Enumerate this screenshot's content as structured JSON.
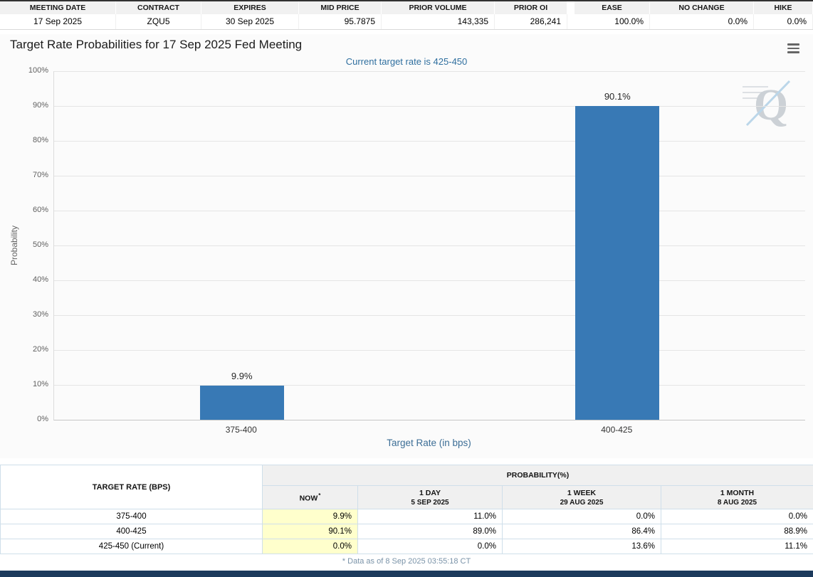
{
  "summary": {
    "left": [
      {
        "key": "meeting-date",
        "label": "MEETING DATE",
        "value": "17 Sep 2025",
        "align": "center"
      },
      {
        "key": "contract",
        "label": "CONTRACT",
        "value": "ZQU5",
        "align": "center"
      },
      {
        "key": "expires",
        "label": "EXPIRES",
        "value": "30 Sep 2025",
        "align": "center"
      },
      {
        "key": "mid-price",
        "label": "MID PRICE",
        "value": "95.7875",
        "align": "right"
      },
      {
        "key": "prior-volume",
        "label": "PRIOR VOLUME",
        "value": "143,335",
        "align": "right"
      },
      {
        "key": "prior-oi",
        "label": "PRIOR OI",
        "value": "286,241",
        "align": "right"
      }
    ],
    "right": [
      {
        "key": "ease",
        "label": "EASE",
        "value": "100.0%",
        "align": "right"
      },
      {
        "key": "no-change",
        "label": "NO CHANGE",
        "value": "0.0%",
        "align": "right"
      },
      {
        "key": "hike",
        "label": "HIKE",
        "value": "0.0%",
        "align": "right"
      }
    ]
  },
  "chart_data": {
    "type": "bar",
    "title": "Target Rate Probabilities for 17 Sep 2025 Fed Meeting",
    "subtitle": "Current target rate is 425-450",
    "categories": [
      "375-400",
      "400-425"
    ],
    "values": [
      9.9,
      90.1
    ],
    "value_labels": [
      "9.9%",
      "90.1%"
    ],
    "xlabel": "Target Rate (in bps)",
    "ylabel": "Probability",
    "ylim": [
      0,
      100
    ],
    "ytick_step": 10,
    "ytick_suffix": "%",
    "grid": true,
    "legend": false,
    "bar_color": "#3879b5"
  },
  "watermark_letter": "Q",
  "bottom_table": {
    "corner_header": "TARGET RATE (BPS)",
    "group_header": "PROBABILITY(%)",
    "columns": [
      {
        "title": "NOW",
        "note_mark": "*",
        "date": ""
      },
      {
        "title": "1 DAY",
        "date": "5 SEP 2025"
      },
      {
        "title": "1 WEEK",
        "date": "29 AUG 2025"
      },
      {
        "title": "1 MONTH",
        "date": "8 AUG 2025"
      }
    ],
    "rows": [
      {
        "rate": "375-400",
        "values": [
          "9.9%",
          "11.0%",
          "0.0%",
          "0.0%"
        ]
      },
      {
        "rate": "400-425",
        "values": [
          "90.1%",
          "89.0%",
          "86.4%",
          "88.9%"
        ]
      },
      {
        "rate": "425-450 (Current)",
        "values": [
          "0.0%",
          "0.0%",
          "13.6%",
          "11.1%"
        ]
      }
    ],
    "footnote": "* Data as of 8 Sep 2025 03:55:18 CT"
  },
  "colors": {
    "bar_blue": "#3879b5",
    "subtitle_blue": "#2f6f9f",
    "now_column_highlight": "#ffffcc",
    "footer_bar_navy": "#1c3a5c",
    "table_border": "#cfdfea",
    "header_gray": "#f0f0f0"
  }
}
